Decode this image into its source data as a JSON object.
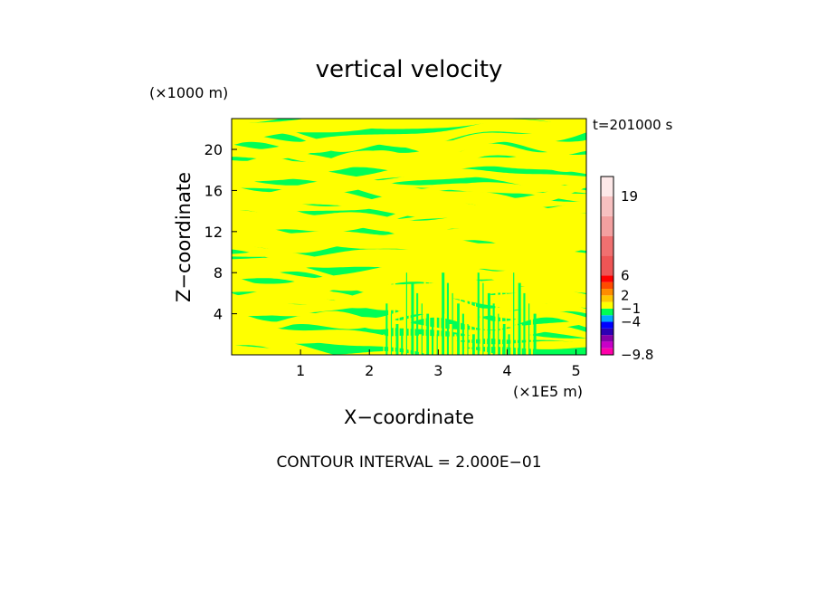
{
  "chart_data": {
    "type": "heatmap",
    "title": "vertical velocity",
    "xlabel": "X−coordinate",
    "ylabel": "Z−coordinate",
    "x_unit": "(×1E5 m)",
    "y_unit": "(×1000 m)",
    "time_label": "t=201000 s",
    "footer": "CONTOUR INTERVAL = 2.000E−01",
    "xlim": [
      0,
      5.15
    ],
    "ylim": [
      0,
      23
    ],
    "x_ticks": [
      {
        "value": 1,
        "label": "1"
      },
      {
        "value": 2,
        "label": "2"
      },
      {
        "value": 3,
        "label": "3"
      },
      {
        "value": 4,
        "label": "4"
      },
      {
        "value": 5,
        "label": "5"
      }
    ],
    "y_ticks": [
      {
        "value": 4,
        "label": "4"
      },
      {
        "value": 8,
        "label": "8"
      },
      {
        "value": 12,
        "label": "12"
      },
      {
        "value": 16,
        "label": "16"
      },
      {
        "value": 20,
        "label": "20"
      }
    ],
    "field_colors": {
      "low": "#00ff55",
      "high": "#ffff00"
    },
    "colorbar": {
      "colors": [
        "#ff00aa",
        "#c800c8",
        "#8800aa",
        "#2d00b4",
        "#0000ff",
        "#00aaff",
        "#00ff55",
        "#ffff00",
        "#ffc800",
        "#ff8c00",
        "#ff4b00",
        "#ff0000",
        "#ee5555",
        "#f07070",
        "#f3a0a0",
        "#f7c0c0",
        "#fde8e8"
      ],
      "labels": [
        {
          "text": "−9.8",
          "index": 0
        },
        {
          "text": "−4",
          "index": 4
        },
        {
          "text": "−1",
          "index": 6
        },
        {
          "text": "2",
          "index": 8
        },
        {
          "text": "6",
          "index": 11
        },
        {
          "text": "19",
          "index": 15
        }
      ]
    }
  }
}
